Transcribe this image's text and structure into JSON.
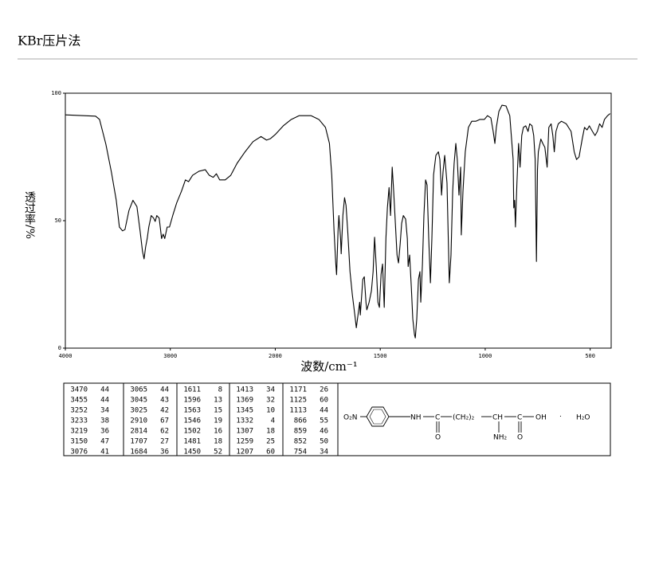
{
  "header": {
    "title": "KBr压片法"
  },
  "chart_data": {
    "type": "line",
    "xlabel": "波数/cm⁻¹",
    "ylabel": "透过率/%",
    "xlim": [
      4000,
      400
    ],
    "x_scale_break": 2000,
    "xticks": [
      4000,
      3000,
      2000,
      1500,
      1000,
      500
    ],
    "ylim": [
      0,
      100
    ],
    "yticks": [
      0,
      50,
      100
    ],
    "color": "#000000",
    "x": [
      4000,
      3712,
      3674,
      3614,
      3561,
      3515,
      3485,
      3455,
      3432,
      3394,
      3356,
      3318,
      3288,
      3265,
      3250,
      3235,
      3220,
      3205,
      3182,
      3159,
      3144,
      3129,
      3106,
      3083,
      3068,
      3053,
      3030,
      3008,
      2977,
      2939,
      2894,
      2856,
      2826,
      2788,
      2727,
      2667,
      2629,
      2591,
      2561,
      2530,
      2477,
      2424,
      2364,
      2288,
      2212,
      2136,
      2083,
      2045,
      2000,
      1962,
      1924,
      1886,
      1830,
      1792,
      1761,
      1742,
      1731,
      1720,
      1712,
      1708,
      1701,
      1697,
      1689,
      1686,
      1678,
      1670,
      1663,
      1655,
      1644,
      1633,
      1621,
      1614,
      1606,
      1598,
      1595,
      1583,
      1576,
      1568,
      1564,
      1553,
      1542,
      1534,
      1527,
      1519,
      1511,
      1504,
      1496,
      1489,
      1481,
      1473,
      1466,
      1458,
      1451,
      1443,
      1436,
      1428,
      1420,
      1413,
      1405,
      1398,
      1390,
      1379,
      1371,
      1367,
      1360,
      1352,
      1345,
      1337,
      1333,
      1326,
      1318,
      1311,
      1307,
      1299,
      1292,
      1284,
      1277,
      1269,
      1261,
      1254,
      1246,
      1235,
      1223,
      1216,
      1208,
      1201,
      1193,
      1182,
      1171,
      1163,
      1155,
      1148,
      1140,
      1133,
      1125,
      1117,
      1114,
      1106,
      1095,
      1080,
      1064,
      1045,
      1026,
      1004,
      989,
      973,
      962,
      954,
      947,
      935,
      920,
      901,
      883,
      867,
      864,
      860,
      856,
      849,
      841,
      834,
      826,
      818,
      807,
      796,
      788,
      777,
      769,
      762,
      756,
      751,
      747,
      735,
      724,
      716,
      705,
      697,
      686,
      678,
      671,
      663,
      652,
      637,
      614,
      591,
      576,
      565,
      553,
      538,
      527,
      515,
      504,
      489,
      477,
      466,
      455,
      443,
      432,
      417,
      405
    ],
    "values": [
      91.5,
      91,
      89.7,
      80,
      69,
      58,
      47.5,
      46,
      46.5,
      54,
      58,
      55.5,
      46,
      38,
      35,
      39.7,
      43,
      47.5,
      52,
      51,
      49.7,
      52,
      51,
      43,
      44.7,
      43,
      47.5,
      47.5,
      52,
      57,
      61.5,
      66,
      65.3,
      67.8,
      69.4,
      70,
      67.8,
      67,
      68.4,
      66,
      66,
      67.8,
      72.5,
      77,
      81,
      83,
      81.6,
      82.2,
      83.8,
      87.2,
      89.7,
      91.2,
      91.2,
      89.7,
      86.6,
      80.3,
      67.8,
      46,
      33.4,
      28.8,
      46,
      52,
      43,
      37,
      52,
      59,
      56,
      46,
      30,
      21,
      13,
      8,
      13,
      18,
      13,
      27,
      28,
      18,
      15,
      18,
      22.5,
      30,
      43.5,
      32,
      18,
      16,
      29,
      33,
      16,
      43,
      55,
      63,
      52,
      71,
      61.5,
      49,
      36.5,
      33.4,
      41,
      49,
      52,
      50.6,
      43,
      32,
      36.5,
      24,
      11.5,
      5.3,
      4,
      11.5,
      27,
      30,
      18,
      33,
      52,
      66,
      64,
      43,
      25.6,
      43,
      68,
      75.6,
      77,
      74,
      60,
      69,
      75.6,
      64.7,
      25.6,
      36.5,
      61.5,
      72.5,
      80.3,
      74,
      60,
      71,
      44.4,
      61.5,
      77,
      86.6,
      89,
      89,
      89.7,
      89.7,
      91.2,
      90.3,
      85,
      80.3,
      86.6,
      92.8,
      95.3,
      95,
      91.2,
      74,
      55,
      58,
      47.5,
      64.7,
      80.3,
      71,
      83.4,
      86.6,
      87.2,
      85,
      88,
      87.2,
      83.4,
      74,
      34,
      70,
      77,
      82,
      80,
      78.8,
      71,
      86.6,
      88,
      83.4,
      77,
      85,
      88,
      89,
      88,
      85,
      77,
      74,
      75,
      82,
      86.6,
      85.6,
      87.2,
      85,
      83.4,
      85,
      88,
      86.6,
      89.7,
      91.2,
      92
    ]
  },
  "peak_table": {
    "columns": [
      [
        [
          3470,
          44
        ],
        [
          3455,
          44
        ],
        [
          3252,
          34
        ],
        [
          3233,
          38
        ],
        [
          3219,
          36
        ],
        [
          3150,
          47
        ],
        [
          3076,
          41
        ]
      ],
      [
        [
          3065,
          44
        ],
        [
          3045,
          43
        ],
        [
          3025,
          42
        ],
        [
          2910,
          67
        ],
        [
          2814,
          62
        ],
        [
          1707,
          27
        ],
        [
          1684,
          36
        ]
      ],
      [
        [
          1611,
          8
        ],
        [
          1596,
          13
        ],
        [
          1563,
          15
        ],
        [
          1546,
          19
        ],
        [
          1502,
          16
        ],
        [
          1481,
          18
        ],
        [
          1450,
          52
        ]
      ],
      [
        [
          1413,
          34
        ],
        [
          1369,
          32
        ],
        [
          1345,
          10
        ],
        [
          1332,
          4
        ],
        [
          1307,
          18
        ],
        [
          1259,
          25
        ],
        [
          1207,
          60
        ]
      ],
      [
        [
          1171,
          26
        ],
        [
          1125,
          60
        ],
        [
          1113,
          44
        ],
        [
          866,
          55
        ],
        [
          859,
          46
        ],
        [
          852,
          50
        ],
        [
          754,
          34
        ]
      ]
    ]
  },
  "structure": {
    "labels": [
      "O₂N",
      "NH",
      "C",
      "O",
      "(CH₂)₂",
      "CH",
      "NH₂",
      "C",
      "OH",
      "O",
      "·",
      "H₂O"
    ]
  }
}
